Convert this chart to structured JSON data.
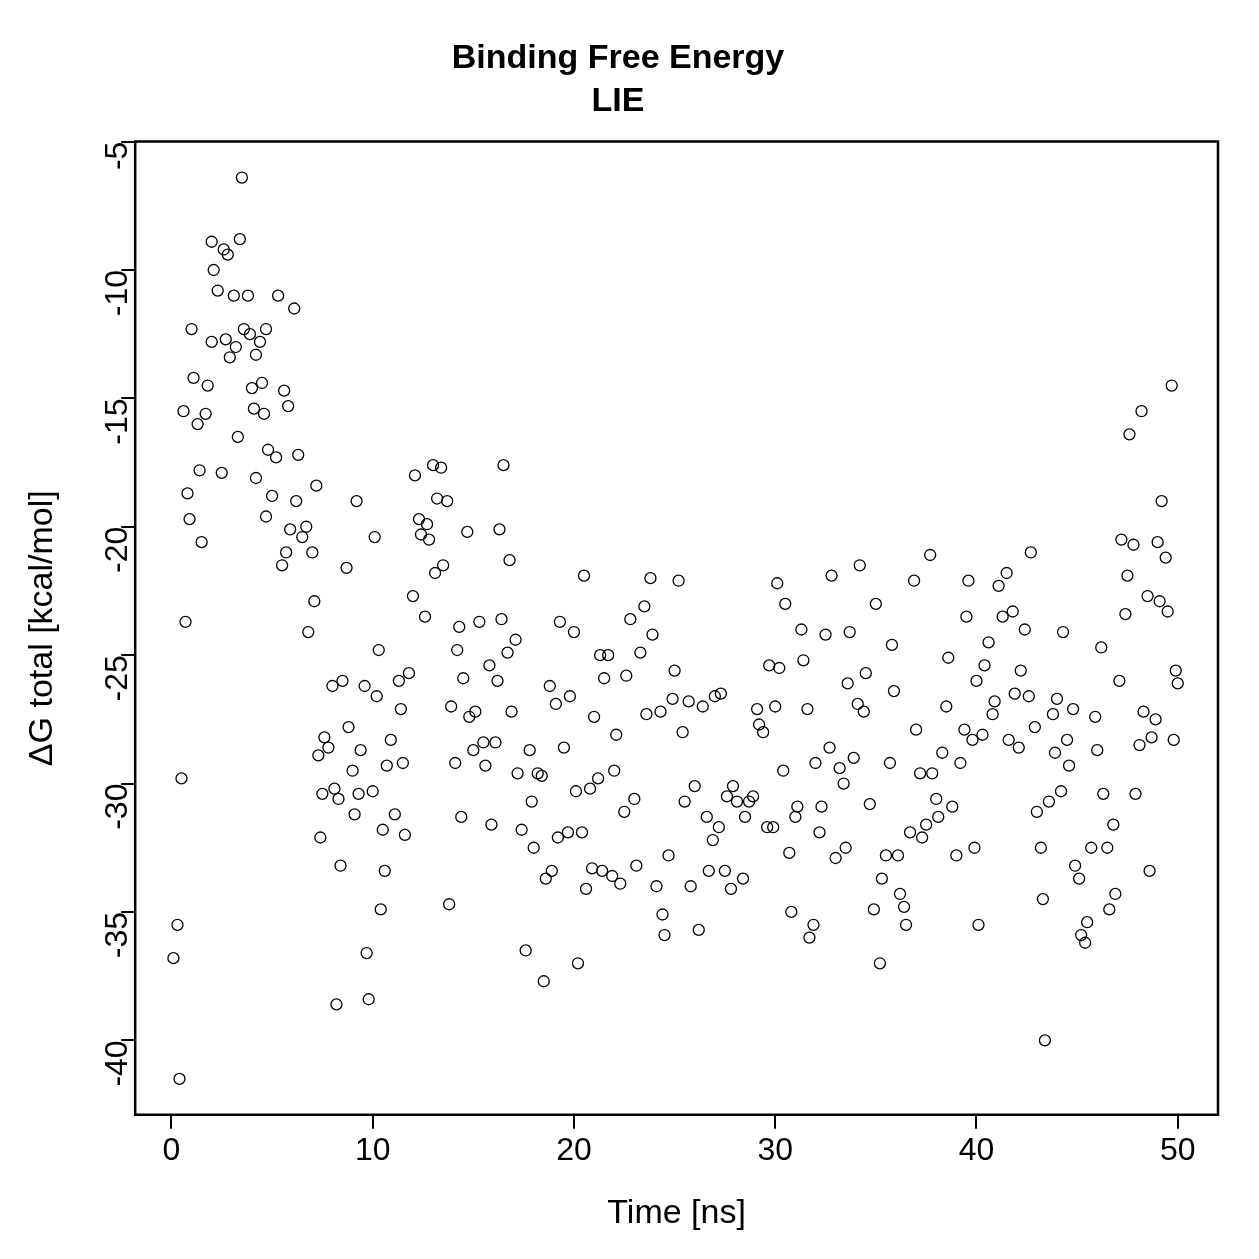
{
  "chart_data": {
    "type": "scatter",
    "title": "Binding Free Energy",
    "subtitle": "LIE",
    "xlabel": "Time [ns]",
    "ylabel": "ΔG total [kcal/mol]",
    "marker": "circle",
    "xlim": [
      -1.8,
      52
    ],
    "ylim": [
      -42.9,
      -5
    ],
    "xticks": [
      0,
      10,
      20,
      30,
      40,
      50
    ],
    "yticks": [
      -40,
      -35,
      -30,
      -25,
      -20,
      -15,
      -10,
      -5
    ],
    "x": [
      0.1,
      0.4,
      0.3,
      0.5,
      0.6,
      0.7,
      0.8,
      0.9,
      1.0,
      1.1,
      1.3,
      1.4,
      1.5,
      1.7,
      1.8,
      2.0,
      2.0,
      2.1,
      2.3,
      2.5,
      2.6,
      2.7,
      2.8,
      2.9,
      3.1,
      3.2,
      3.3,
      3.4,
      3.5,
      3.6,
      3.8,
      3.9,
      4.0,
      4.1,
      4.2,
      4.2,
      4.4,
      4.5,
      4.6,
      4.7,
      4.7,
      4.8,
      5.0,
      5.2,
      5.3,
      5.5,
      5.6,
      5.7,
      5.8,
      5.9,
      6.1,
      6.2,
      6.3,
      6.5,
      6.7,
      6.8,
      7.0,
      7.1,
      7.2,
      7.3,
      7.4,
      7.5,
      7.6,
      7.8,
      8.0,
      8.1,
      8.2,
      8.3,
      8.4,
      8.5,
      8.7,
      8.8,
      9.0,
      9.1,
      9.2,
      9.3,
      9.4,
      9.6,
      9.7,
      9.8,
      10.0,
      10.1,
      10.2,
      10.3,
      10.4,
      10.5,
      10.6,
      10.7,
      10.9,
      11.1,
      11.3,
      11.4,
      11.5,
      11.6,
      11.8,
      12.0,
      12.1,
      12.3,
      12.4,
      12.6,
      12.7,
      12.8,
      13.0,
      13.1,
      13.2,
      13.4,
      13.5,
      13.7,
      13.8,
      13.9,
      14.1,
      14.2,
      14.3,
      14.4,
      14.5,
      14.7,
      14.8,
      15.0,
      15.1,
      15.3,
      15.5,
      15.6,
      15.8,
      15.9,
      16.1,
      16.2,
      16.3,
      16.4,
      16.5,
      16.7,
      16.8,
      16.9,
      17.1,
      17.2,
      17.4,
      17.6,
      17.8,
      17.9,
      18.0,
      18.2,
      18.4,
      18.5,
      18.6,
      18.8,
      18.9,
      19.1,
      19.2,
      19.3,
      19.5,
      19.7,
      19.8,
      20.0,
      20.1,
      20.2,
      20.4,
      20.5,
      20.6,
      20.8,
      20.9,
      21.0,
      21.2,
      21.3,
      21.4,
      21.5,
      21.7,
      21.9,
      22.0,
      22.1,
      22.3,
      22.5,
      22.6,
      22.8,
      23.0,
      23.1,
      23.3,
      23.5,
      23.6,
      23.8,
      23.9,
      24.1,
      24.3,
      24.4,
      24.5,
      24.7,
      24.9,
      25.0,
      25.2,
      25.4,
      25.5,
      25.7,
      25.8,
      26.0,
      26.2,
      26.4,
      26.6,
      26.7,
      26.9,
      27.0,
      27.2,
      27.3,
      27.5,
      27.6,
      27.8,
      27.9,
      28.1,
      28.4,
      28.5,
      28.7,
      28.9,
      29.1,
      29.2,
      29.4,
      29.6,
      29.7,
      29.9,
      30.0,
      30.1,
      30.2,
      30.4,
      30.5,
      30.7,
      30.8,
      31.0,
      31.1,
      31.3,
      31.4,
      31.6,
      31.7,
      31.9,
      32.0,
      32.2,
      32.3,
      32.5,
      32.7,
      32.8,
      33.0,
      33.2,
      33.4,
      33.5,
      33.6,
      33.7,
      33.9,
      34.1,
      34.2,
      34.4,
      34.5,
      34.7,
      34.9,
      35.0,
      35.2,
      35.3,
      35.5,
      35.7,
      35.8,
      35.9,
      36.1,
      36.2,
      36.4,
      36.5,
      36.7,
      36.9,
      37.0,
      37.2,
      37.3,
      37.5,
      37.7,
      37.8,
      38.0,
      38.1,
      38.3,
      38.5,
      38.6,
      38.8,
      39.0,
      39.2,
      39.4,
      39.5,
      39.6,
      39.8,
      39.9,
      40.0,
      40.1,
      40.3,
      40.4,
      40.6,
      40.8,
      40.9,
      41.1,
      41.3,
      41.5,
      41.6,
      41.8,
      41.9,
      42.1,
      42.2,
      42.4,
      42.6,
      42.7,
      42.9,
      43.0,
      43.2,
      43.3,
      43.4,
      43.6,
      43.8,
      43.9,
      44.0,
      44.2,
      44.3,
      44.5,
      44.6,
      44.8,
      44.9,
      45.1,
      45.2,
      45.4,
      45.5,
      45.7,
      45.9,
      46.0,
      46.2,
      46.3,
      46.5,
      46.6,
      46.8,
      46.9,
      47.1,
      47.2,
      47.4,
      47.5,
      47.6,
      47.8,
      47.9,
      48.1,
      48.2,
      48.3,
      48.5,
      48.6,
      48.7,
      48.9,
      49.0,
      49.1,
      49.2,
      49.4,
      49.5,
      49.7,
      49.8,
      49.9,
      50.0
    ],
    "series": [
      {
        "color": "#000000",
        "values": [
          -36.8,
          -41.5,
          -35.5,
          -29.8,
          -15.5,
          -23.7,
          -18.7,
          -19.7,
          -12.3,
          -14.2,
          -16.0,
          -17.8,
          -20.6,
          -15.6,
          -14.5,
          -12.8,
          -8.9,
          -10.0,
          -10.8,
          -17.9,
          -9.2,
          -12.7,
          -9.4,
          -13.4,
          -11.0,
          -13.0,
          -16.5,
          -8.8,
          -6.4,
          -12.3,
          -11.0,
          -12.5,
          -14.6,
          -15.4,
          -18.1,
          -13.3,
          -12.8,
          -14.4,
          -15.6,
          -12.3,
          -19.6,
          -17.0,
          -18.8,
          -17.3,
          -11.0,
          -21.5,
          -14.7,
          -21.0,
          -15.3,
          -20.1,
          -11.5,
          -19.0,
          -17.2,
          -20.4,
          -20.0,
          -24.1,
          -21.0,
          -22.9,
          -18.4,
          -28.9,
          -32.1,
          -30.4,
          -28.2,
          -28.6,
          -26.2,
          -30.2,
          -38.6,
          -30.6,
          -33.2,
          -26.0,
          -21.6,
          -27.8,
          -29.5,
          -31.2,
          -19.0,
          -30.4,
          -28.7,
          -26.2,
          -36.6,
          -38.4,
          -30.3,
          -20.4,
          -26.6,
          -24.8,
          -34.9,
          -31.8,
          -33.4,
          -29.3,
          -28.3,
          -31.2,
          -26.0,
          -27.1,
          -29.2,
          -32.0,
          -25.7,
          -22.7,
          -18.0,
          -19.7,
          -20.3,
          -23.5,
          -19.9,
          -20.5,
          -17.6,
          -21.8,
          -18.9,
          -17.7,
          -21.5,
          -19.0,
          -34.7,
          -27.0,
          -29.2,
          -24.8,
          -23.9,
          -31.3,
          -25.9,
          -20.2,
          -27.4,
          -28.7,
          -27.2,
          -23.7,
          -28.4,
          -29.3,
          -25.4,
          -31.6,
          -28.4,
          -26.0,
          -20.1,
          -23.6,
          -17.6,
          -24.9,
          -21.3,
          -27.2,
          -24.4,
          -29.6,
          -31.8,
          -36.5,
          -28.7,
          -30.7,
          -32.5,
          -29.6,
          -29.7,
          -37.7,
          -33.7,
          -26.2,
          -33.4,
          -26.9,
          -32.1,
          -23.7,
          -28.6,
          -31.9,
          -26.6,
          -24.1,
          -30.3,
          -37.0,
          -31.9,
          -21.9,
          -34.1,
          -30.2,
          -33.3,
          -27.4,
          -29.8,
          -25.0,
          -33.4,
          -25.9,
          -25.0,
          -33.6,
          -29.5,
          -28.1,
          -33.9,
          -31.1,
          -25.8,
          -23.6,
          -30.6,
          -33.2,
          -24.9,
          -23.1,
          -27.3,
          -22.0,
          -24.2,
          -34.0,
          -27.2,
          -35.1,
          -35.9,
          -32.8,
          -26.7,
          -25.6,
          -22.1,
          -28.0,
          -30.7,
          -26.8,
          -34.0,
          -30.1,
          -35.7,
          -27.0,
          -31.3,
          -33.4,
          -32.2,
          -26.6,
          -31.7,
          -26.5,
          -33.4,
          -30.5,
          -34.1,
          -30.1,
          -30.7,
          -33.7,
          -31.3,
          -30.7,
          -30.5,
          -27.1,
          -27.7,
          -28.0,
          -31.7,
          -25.4,
          -31.7,
          -27.0,
          -22.2,
          -25.5,
          -29.5,
          -23.0,
          -32.7,
          -35.0,
          -31.3,
          -30.9,
          -24.0,
          -25.2,
          -27.1,
          -36.0,
          -35.5,
          -29.2,
          -31.9,
          -30.9,
          -24.2,
          -28.6,
          -21.9,
          -32.9,
          -29.4,
          -30.0,
          -32.5,
          -26.1,
          -24.1,
          -29.0,
          -26.9,
          -21.5,
          -27.2,
          -25.7,
          -30.8,
          -34.9,
          -23.0,
          -37.0,
          -33.7,
          -32.8,
          -29.2,
          -24.6,
          -26.4,
          -32.8,
          -34.3,
          -34.8,
          -35.5,
          -31.9,
          -22.1,
          -27.9,
          -29.6,
          -32.1,
          -31.6,
          -21.1,
          -29.6,
          -30.6,
          -31.3,
          -28.8,
          -27.0,
          -25.1,
          -30.9,
          -32.8,
          -29.2,
          -27.9,
          -23.5,
          -22.1,
          -28.3,
          -32.5,
          -26.0,
          -35.5,
          -28.1,
          -25.4,
          -24.5,
          -27.3,
          -26.8,
          -22.3,
          -23.5,
          -21.8,
          -28.3,
          -23.3,
          -26.5,
          -28.6,
          -25.6,
          -24.0,
          -26.6,
          -21.0,
          -27.8,
          -31.1,
          -32.5,
          -34.5,
          -40.0,
          -30.7,
          -27.3,
          -28.8,
          -26.7,
          -30.3,
          -24.1,
          -28.3,
          -29.3,
          -27.1,
          -33.2,
          -33.7,
          -35.9,
          -36.2,
          -35.4,
          -32.5,
          -27.4,
          -28.7,
          -24.7,
          -30.4,
          -32.5,
          -34.9,
          -31.6,
          -34.3,
          -26.0,
          -20.5,
          -23.4,
          -21.9,
          -16.4,
          -20.7,
          -30.4,
          -28.5,
          -15.5,
          -27.2,
          -22.7,
          -33.4,
          -28.2,
          -27.5,
          -20.6,
          -22.9,
          -19.0,
          -21.2,
          -23.3,
          -14.5,
          -28.3,
          -25.6,
          -26.1
        ]
      }
    ]
  }
}
